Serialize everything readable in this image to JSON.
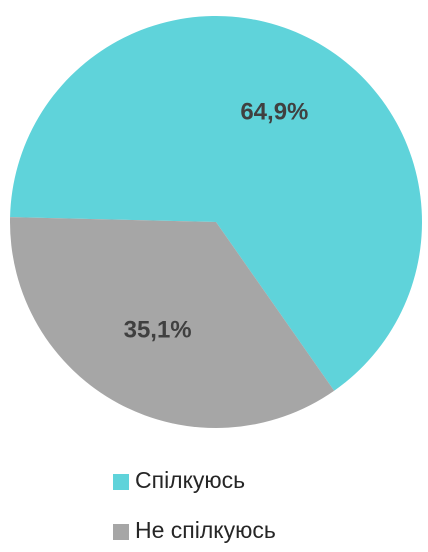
{
  "chart_data": {
    "type": "pie",
    "categories": [
      "Спілкуюсь",
      "Не спілкуюсь"
    ],
    "values": [
      64.9,
      35.1
    ],
    "value_labels": [
      "64,9%",
      "35,1%"
    ],
    "colors": [
      "#5fd3da",
      "#a6a6a6"
    ],
    "legend": "bottom"
  }
}
